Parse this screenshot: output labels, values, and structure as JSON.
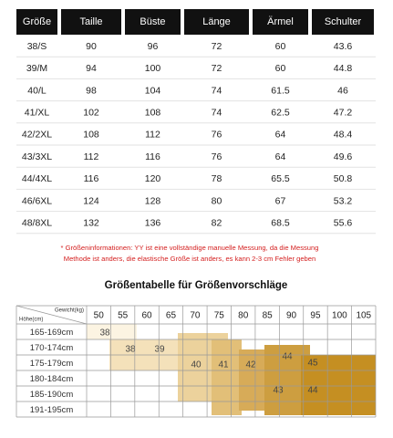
{
  "table": {
    "header": [
      "Größe",
      "Taille",
      "Büste",
      "Länge",
      "Ärmel",
      "Schulter"
    ],
    "rows": [
      [
        "38/S",
        "90",
        "96",
        "72",
        "60",
        "43.6"
      ],
      [
        "39/M",
        "94",
        "100",
        "72",
        "60",
        "44.8"
      ],
      [
        "40/L",
        "98",
        "104",
        "74",
        "61.5",
        "46"
      ],
      [
        "41/XL",
        "102",
        "108",
        "74",
        "62.5",
        "47.2"
      ],
      [
        "42/2XL",
        "108",
        "112",
        "76",
        "64",
        "48.4"
      ],
      [
        "43/3XL",
        "112",
        "116",
        "76",
        "64",
        "49.6"
      ],
      [
        "44/4XL",
        "116",
        "120",
        "78",
        "65.5",
        "50.8"
      ],
      [
        "46/6XL",
        "124",
        "128",
        "80",
        "67",
        "53.2"
      ],
      [
        "48/8XL",
        "132",
        "136",
        "82",
        "68.5",
        "55.6"
      ]
    ]
  },
  "note": [
    "* Größeninformationen: YY ist eine vollständige manuelle Messung, da die Messung",
    "Methode ist anders, die elastische Größe ist anders, es kann 2-3 cm Fehler geben"
  ],
  "guide": {
    "title": "Größentabelle für Größenvorschläge",
    "weight_label": "Gewicht(kg)",
    "height_label": "Höhe(cm)",
    "weights": [
      "50",
      "55",
      "60",
      "65",
      "70",
      "75",
      "80",
      "85",
      "90",
      "95",
      "100",
      "105"
    ],
    "heights": [
      "165-169cm",
      "170-174cm",
      "175-179cm",
      "180-184cm",
      "185-190cm",
      "191-195cm"
    ],
    "sizes": [
      "38",
      "38",
      "39",
      "40",
      "41",
      "42",
      "43",
      "44",
      "45",
      "44"
    ]
  }
}
